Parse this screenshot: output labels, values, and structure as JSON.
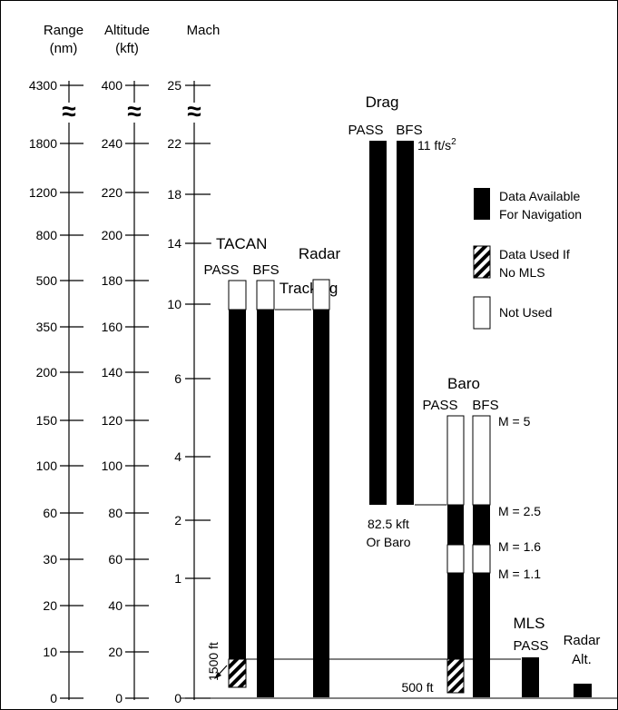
{
  "scales": {
    "range": {
      "header_line1": "Range",
      "header_line2": "(nm)",
      "ticks": [
        "4300",
        "1800",
        "1200",
        "800",
        "500",
        "350",
        "200",
        "150",
        "100",
        "60",
        "30",
        "20",
        "10",
        "0"
      ]
    },
    "altitude": {
      "header_line1": "Altitude",
      "header_line2": "(kft)",
      "ticks": [
        "400",
        "240",
        "220",
        "200",
        "180",
        "160",
        "140",
        "120",
        "100",
        "80",
        "60",
        "40",
        "20",
        "0"
      ]
    },
    "mach": {
      "header": "Mach",
      "ticks": [
        "25",
        "22",
        "18",
        "14",
        "10",
        "6",
        "4",
        "2",
        "1",
        "0"
      ]
    },
    "break_mark": "≈"
  },
  "tacan": {
    "title": "TACAN",
    "pass_label": "PASS",
    "bfs_label": "BFS",
    "floor_label": "1500 ft"
  },
  "radar_tracking": {
    "title_line1": "Radar",
    "title_line2": "Tracking"
  },
  "drag": {
    "title": "Drag",
    "pass_label": "PASS",
    "bfs_label": "BFS",
    "top_label": "11 ft/s",
    "top_label_sup": "2",
    "bottom_line1": "82.5 kft",
    "bottom_line2": "Or Baro"
  },
  "baro": {
    "title": "Baro",
    "pass_label": "PASS",
    "bfs_label": "BFS",
    "mach_labels": [
      "M = 5",
      "M = 2.5",
      "M = 1.6",
      "M = 1.1"
    ],
    "floor_label": "500 ft"
  },
  "mls": {
    "title": "MLS",
    "pass_label": "PASS"
  },
  "radar_alt": {
    "title_line1": "Radar",
    "title_line2": "Alt."
  },
  "legend": {
    "available_line1": "Data Available",
    "available_line2": "For Navigation",
    "used_if_line1": "Data Used If",
    "used_if_line2": "No MLS",
    "not_used": "Not Used"
  },
  "colors": {
    "available": "#000000",
    "not_used": "#ffffff",
    "outline": "#000000"
  }
}
